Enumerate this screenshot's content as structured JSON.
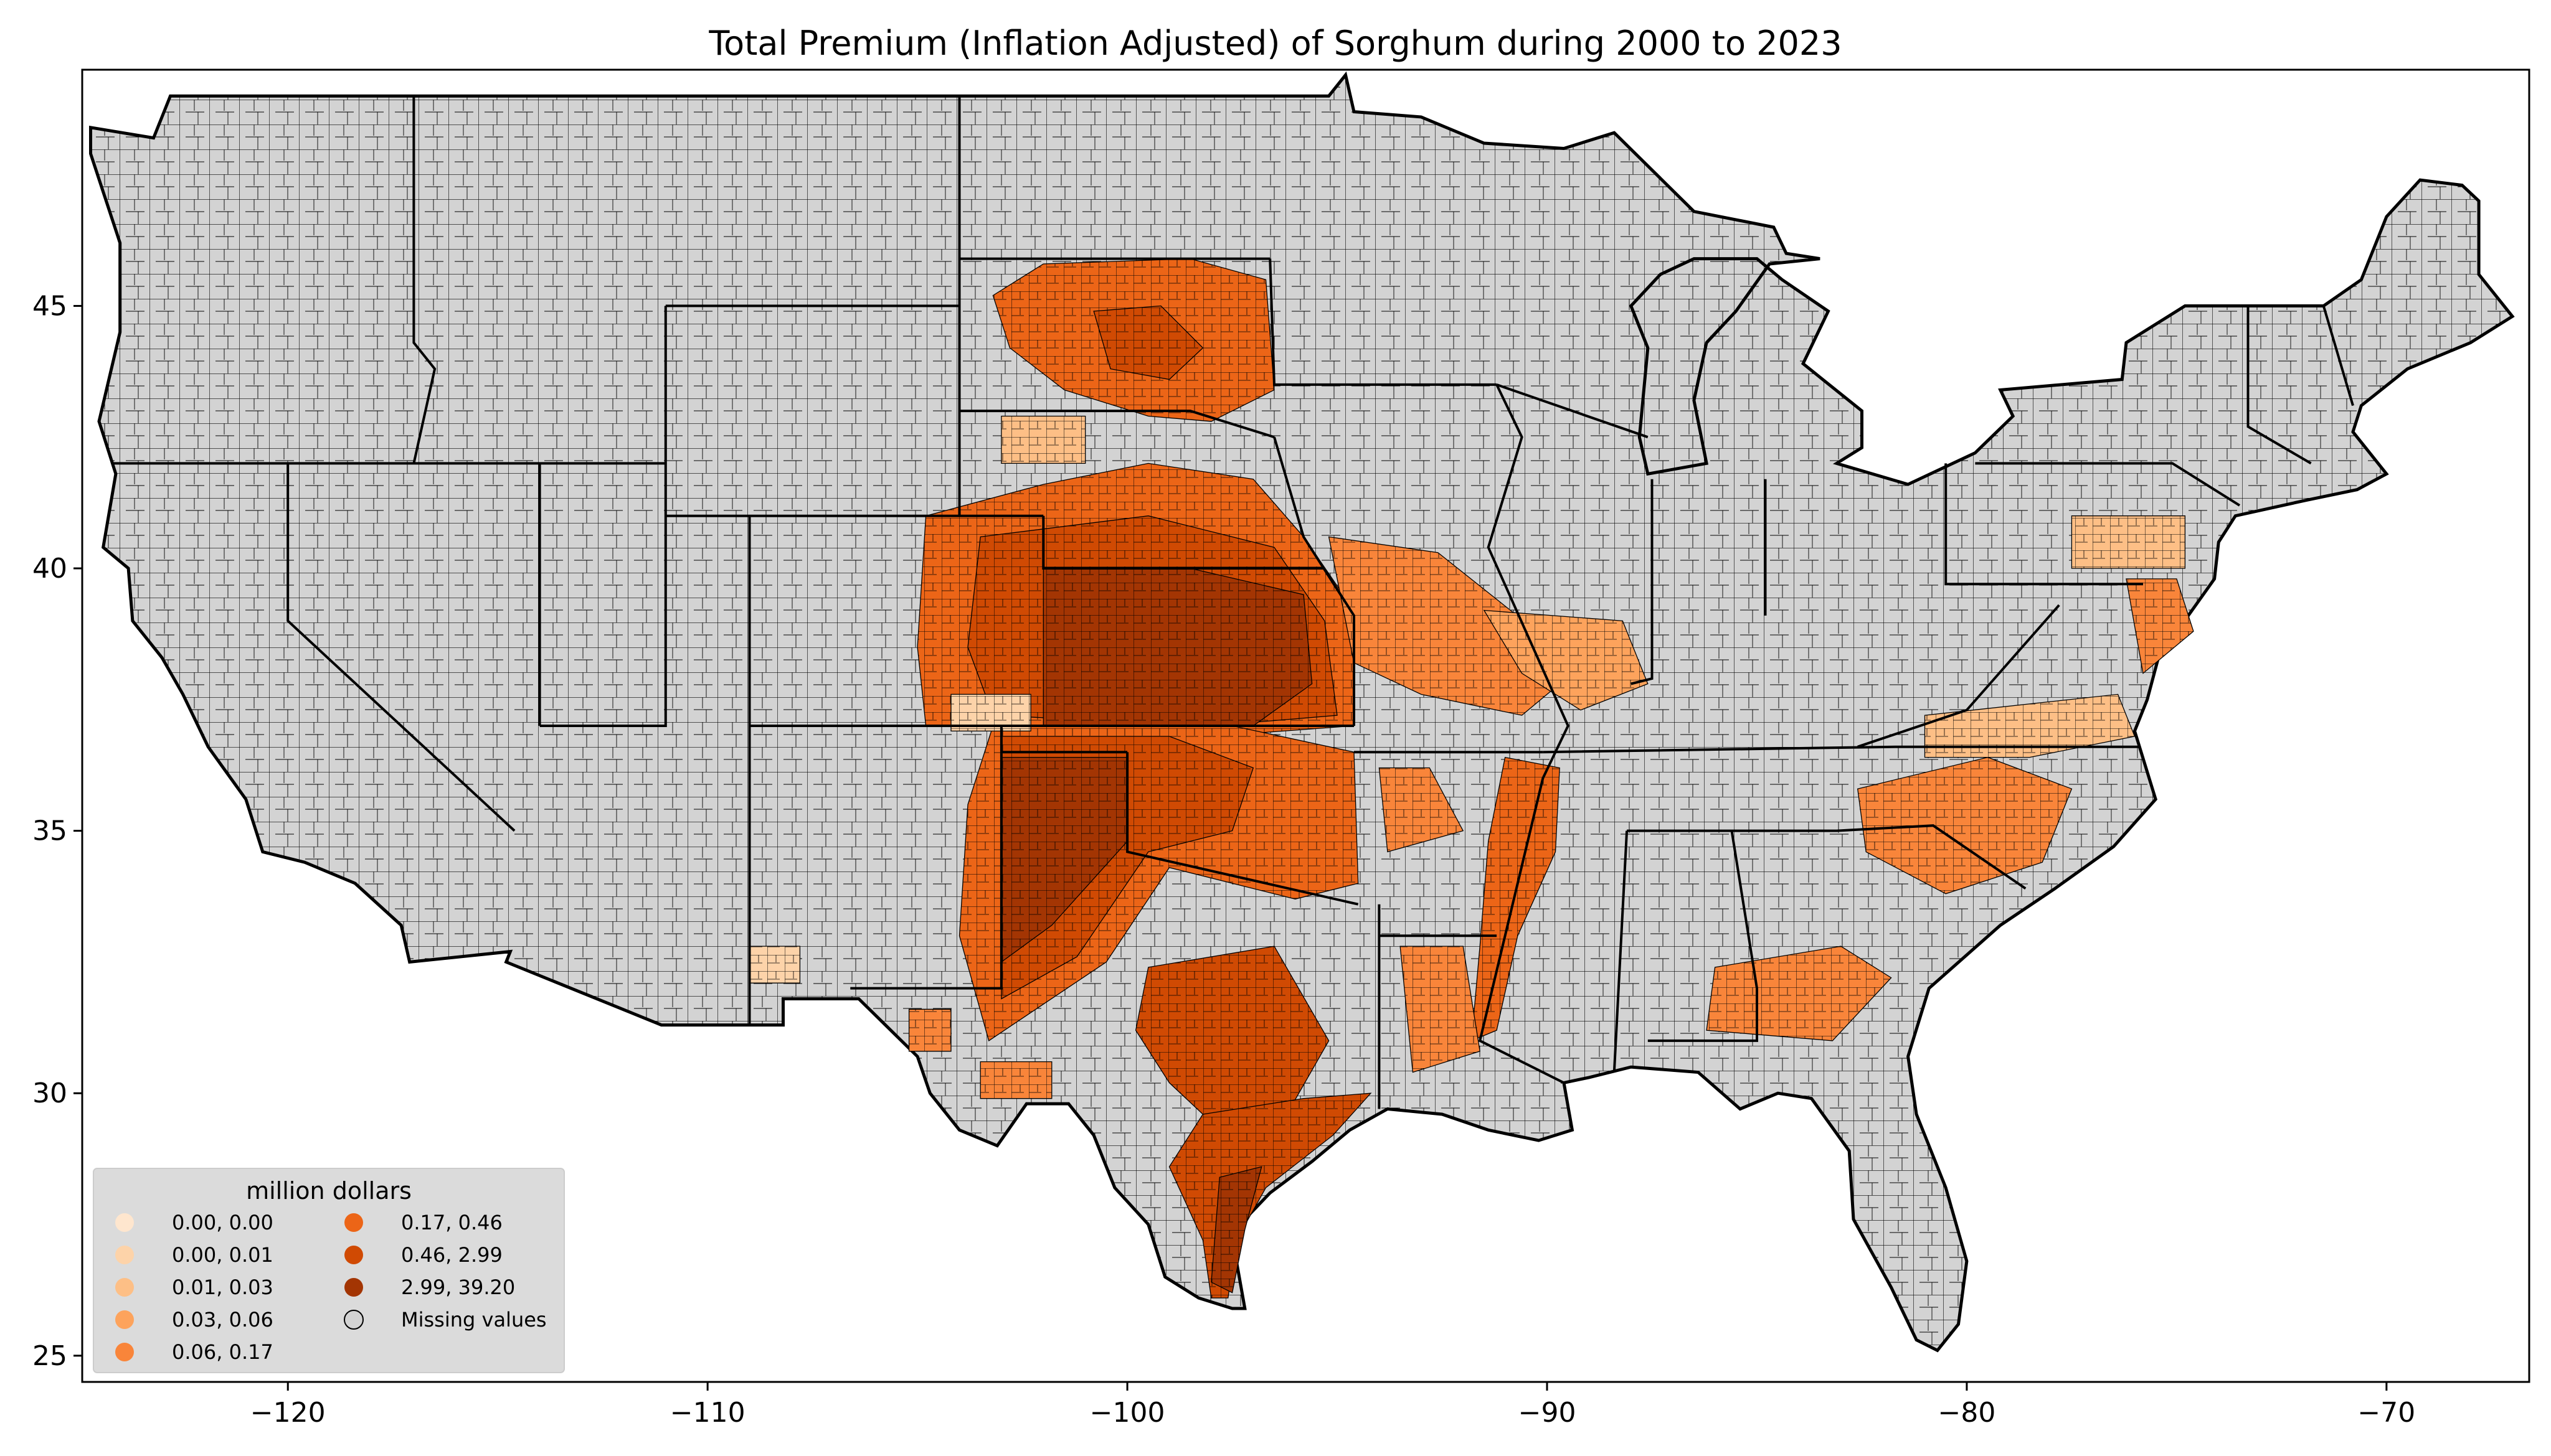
{
  "title": "Total  Premium  (Inflation Adjusted) of Sorghum during 2000 to 2023",
  "axes": {
    "x_ticks": [
      {
        "value": -120,
        "label": "−120"
      },
      {
        "value": -110,
        "label": "−110"
      },
      {
        "value": -100,
        "label": "−100"
      },
      {
        "value": -90,
        "label": "−90"
      },
      {
        "value": -80,
        "label": "−80"
      },
      {
        "value": -70,
        "label": "−70"
      }
    ],
    "y_ticks": [
      {
        "value": 25,
        "label": "25"
      },
      {
        "value": 30,
        "label": "30"
      },
      {
        "value": 35,
        "label": "35"
      },
      {
        "value": 40,
        "label": "40"
      },
      {
        "value": 45,
        "label": "45"
      }
    ],
    "xlim": [
      -124.9,
      -66.6
    ],
    "ylim": [
      24.5,
      49.5
    ]
  },
  "legend": {
    "title": "million dollars",
    "placement": "lower-left",
    "items": [
      {
        "label": "0.00,  0.00",
        "color": "#fee6ce"
      },
      {
        "label": "0.00,  0.01",
        "color": "#fdd3a9"
      },
      {
        "label": "0.01,  0.03",
        "color": "#fdbf86"
      },
      {
        "label": "0.03,  0.06",
        "color": "#fda35c"
      },
      {
        "label": "0.06,  0.17",
        "color": "#f9853a"
      },
      {
        "label": "0.17,  0.46",
        "color": "#ec6517"
      },
      {
        "label": "0.46,  2.99",
        "color": "#d04a03"
      },
      {
        "label": "2.99, 39.20",
        "color": "#a33503"
      },
      {
        "label": "Missing values",
        "color": "#d3d3d3"
      }
    ]
  },
  "colors": {
    "missing": "#d3d3d3",
    "background": "#ffffff",
    "border": "#000000"
  }
}
